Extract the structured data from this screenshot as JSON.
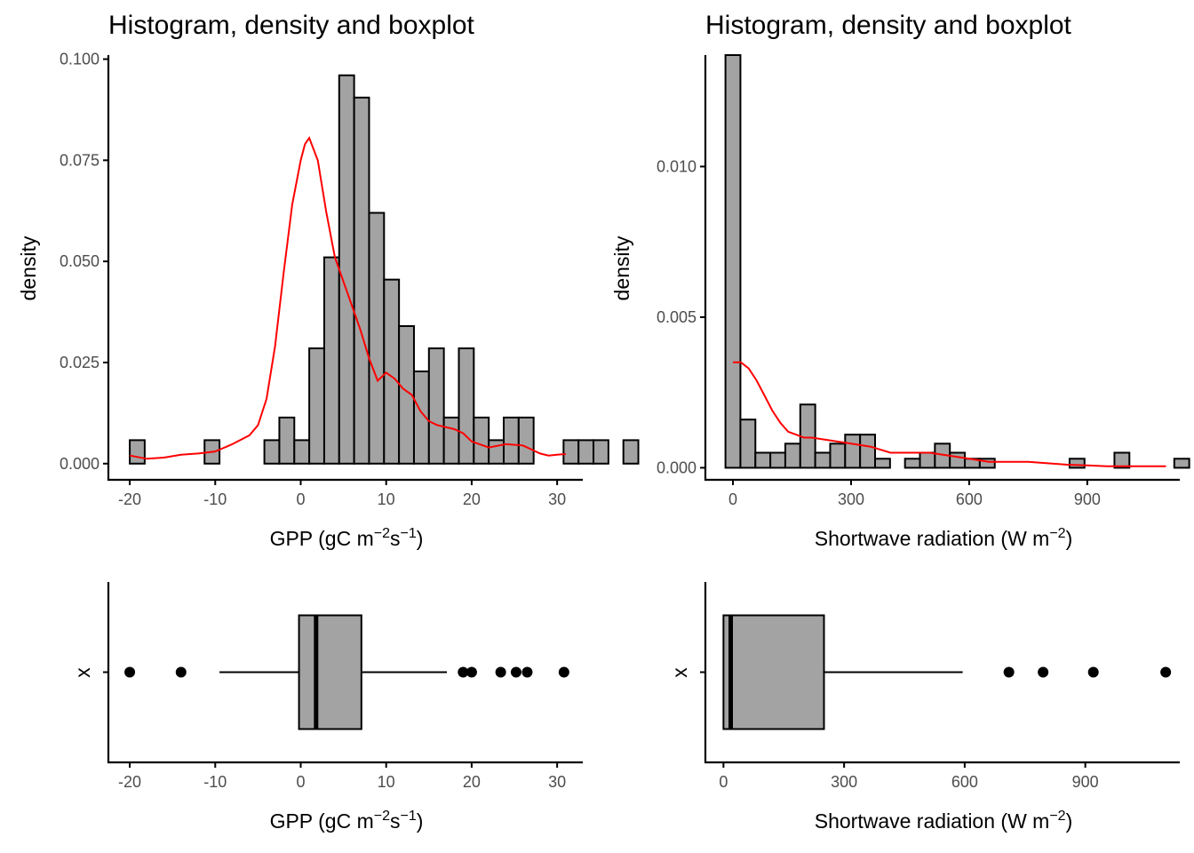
{
  "colors": {
    "fill": "#a3a3a3",
    "outline": "#000000",
    "density_line": "#ff0000",
    "tick_text": "#4d4d4d"
  },
  "chart_data": [
    {
      "type": "histogram",
      "title": "Histogram, density and boxplot",
      "xlabel": {
        "prefix": "GPP (gC m",
        "sup1": "−2",
        "mid": "s",
        "sup2": "−1",
        "suffix": ")"
      },
      "ylabel": "density",
      "xlim": [
        -22.5,
        33
      ],
      "ylim": [
        -0.004,
        0.101
      ],
      "xticks": [
        -20,
        -10,
        0,
        10,
        20,
        30
      ],
      "xtick_labels": [
        "-20",
        "-10",
        "0",
        "10",
        "20",
        "30"
      ],
      "yticks": [
        0,
        0.025,
        0.05,
        0.075,
        0.1
      ],
      "ytick_labels": [
        "0.000",
        "0.025",
        "0.050",
        "0.075",
        "0.100"
      ],
      "bins": {
        "start": -20,
        "width": 1.75,
        "densities": [
          0.0058,
          0,
          0,
          0,
          0,
          0.0058,
          0,
          0,
          0,
          0.0058,
          0.0114,
          0.0058,
          0.0285,
          0.051,
          0.096,
          0.0905,
          0.062,
          0.0455,
          0.034,
          0.0228,
          0.0285,
          0.0114,
          0.0285,
          0.0114,
          0.0058,
          0.0114,
          0.0114,
          0,
          0,
          0.0058,
          0.0058,
          0.0058,
          0,
          0.0058
        ]
      },
      "density_curve": {
        "x": [
          -20,
          -18,
          -16,
          -14,
          -12,
          -10,
          -8,
          -6,
          -5,
          -4,
          -3,
          -2,
          -1,
          0,
          0.5,
          1,
          2,
          3,
          4,
          5,
          6,
          7,
          8,
          9,
          10,
          11,
          12,
          13,
          14,
          15,
          16,
          17,
          18,
          19,
          20,
          22,
          24,
          26,
          28,
          29,
          30,
          31
        ],
        "y": [
          0.002,
          0.0012,
          0.0015,
          0.0022,
          0.0025,
          0.003,
          0.0048,
          0.007,
          0.0095,
          0.016,
          0.029,
          0.047,
          0.064,
          0.075,
          0.079,
          0.0805,
          0.075,
          0.062,
          0.051,
          0.045,
          0.039,
          0.033,
          0.026,
          0.0205,
          0.0225,
          0.021,
          0.0185,
          0.017,
          0.013,
          0.0105,
          0.0095,
          0.009,
          0.0085,
          0.0075,
          0.0055,
          0.004,
          0.0048,
          0.0045,
          0.0025,
          0.002,
          0.0022,
          0.0024
        ]
      }
    },
    {
      "type": "histogram",
      "title": "Histogram, density and boxplot",
      "xlabel": {
        "prefix": "Shortwave radiation (W m",
        "sup1": "−2",
        "suffix": ")"
      },
      "ylabel": "density",
      "xlim": [
        -70,
        1135
      ],
      "ylim": [
        -0.0004,
        0.0137
      ],
      "xticks": [
        0,
        300,
        600,
        900
      ],
      "xtick_labels": [
        "0",
        "300",
        "600",
        "900"
      ],
      "yticks": [
        0,
        0.005,
        0.01
      ],
      "ytick_labels": [
        "0.000",
        "0.005",
        "0.010"
      ],
      "bins": {
        "start": -19,
        "width": 38,
        "densities": [
          0.0137,
          0.0016,
          0.0005,
          0.0005,
          0.0008,
          0.0021,
          0.0005,
          0.0008,
          0.0011,
          0.0011,
          0.0003,
          0,
          0.0003,
          0.0005,
          0.0008,
          0.0005,
          0.0003,
          0.0003,
          0,
          0,
          0,
          0,
          0,
          0.0003,
          0,
          0,
          0.0005,
          0,
          0,
          0,
          0.0003,
          0,
          0,
          0,
          0,
          0.0003
        ]
      },
      "density_curve": {
        "x": [
          0,
          20,
          40,
          60,
          80,
          100,
          120,
          140,
          160,
          180,
          200,
          250,
          300,
          350,
          400,
          450,
          500,
          550,
          600,
          650,
          700,
          750,
          800,
          850,
          900,
          950,
          1000,
          1050,
          1100
        ],
        "y": [
          0.0035,
          0.0035,
          0.0033,
          0.0029,
          0.0024,
          0.0019,
          0.0015,
          0.0012,
          0.0011,
          0.001,
          0.001,
          0.0009,
          0.0008,
          0.0007,
          0.0005,
          0.0005,
          0.0005,
          0.0004,
          0.0003,
          0.0002,
          0.0002,
          0.0002,
          0.00015,
          0.0001,
          8e-05,
          5e-05,
          5e-05,
          5e-05,
          5e-05
        ]
      }
    },
    {
      "type": "boxplot",
      "xlabel": {
        "prefix": "GPP (gC m",
        "sup1": "−2",
        "mid": "s",
        "sup2": "−1",
        "suffix": ")"
      },
      "ylabel": "x",
      "xlim": [
        -22.5,
        33
      ],
      "xticks": [
        -20,
        -10,
        0,
        10,
        20,
        30
      ],
      "xtick_labels": [
        "-20",
        "-10",
        "0",
        "10",
        "20",
        "30"
      ],
      "whisker_low": -9.5,
      "q1": -0.2,
      "median": 1.8,
      "q3": 7.1,
      "whisker_high": 17.1,
      "outliers": [
        -20,
        -14,
        19,
        20,
        23.4,
        25.2,
        26.5,
        30.8
      ]
    },
    {
      "type": "boxplot",
      "xlabel": {
        "prefix": "Shortwave radiation (W m",
        "sup1": "−2",
        "suffix": ")"
      },
      "ylabel": "x",
      "xlim": [
        -45,
        1135
      ],
      "xticks": [
        0,
        300,
        600,
        900
      ],
      "xtick_labels": [
        "0",
        "300",
        "600",
        "900"
      ],
      "whisker_low": 0,
      "q1": 0,
      "median": 18,
      "q3": 250,
      "whisker_high": 595,
      "outliers": [
        710,
        795,
        920,
        1100
      ]
    }
  ]
}
